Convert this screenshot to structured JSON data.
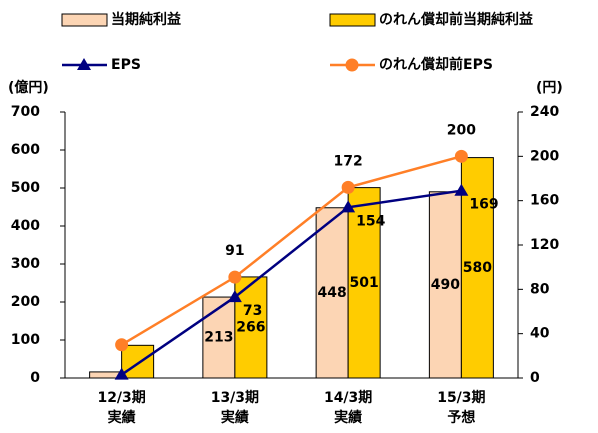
{
  "chart_data": {
    "type": "bar_line",
    "y_axis_label": "(億円)",
    "y2_axis_label": "(円)",
    "categories": [
      [
        "12/3期",
        "実績"
      ],
      [
        "13/3期",
        "実績"
      ],
      [
        "14/3期",
        "実績"
      ],
      [
        "15/3期",
        "予想"
      ]
    ],
    "ylim": [
      0,
      700
    ],
    "yticks": [
      0,
      100,
      200,
      300,
      400,
      500,
      600,
      700
    ],
    "y2lim": [
      0,
      240
    ],
    "y2ticks": [
      0,
      40,
      80,
      120,
      160,
      200,
      240
    ],
    "series": [
      {
        "name": "当期純利益",
        "type": "bar",
        "color": "#fcd5b4",
        "values": [
          16,
          213,
          448,
          490
        ],
        "value_labels": [
          null,
          "213",
          "448",
          "490"
        ]
      },
      {
        "name": "のれん償却前当期純利益",
        "type": "bar",
        "color": "#ffcc00",
        "values": [
          86,
          266,
          501,
          580
        ],
        "value_labels": [
          null,
          "266",
          "501",
          "580"
        ]
      },
      {
        "name": "EPS",
        "type": "line",
        "axis": "y2",
        "marker": "triangle",
        "color": "#000080",
        "values": [
          3,
          73,
          154,
          169
        ],
        "value_labels": [
          null,
          "73",
          "154",
          "169"
        ]
      },
      {
        "name": "のれん償却前EPS",
        "type": "line",
        "axis": "y2",
        "marker": "circle",
        "color": "#ff7f27",
        "values": [
          30,
          91,
          172,
          200
        ],
        "value_labels": [
          null,
          "91",
          "172",
          "200"
        ]
      }
    ]
  }
}
